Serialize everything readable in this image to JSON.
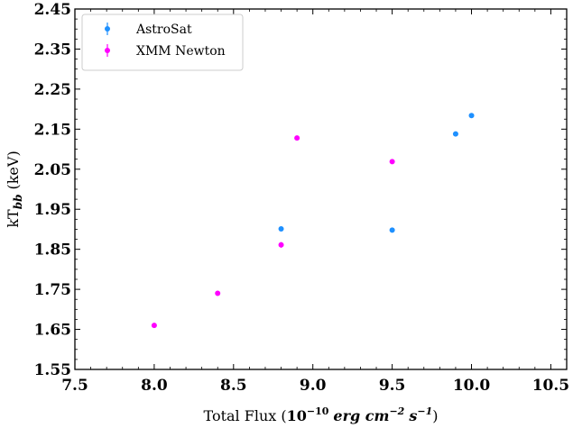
{
  "chart_data": {
    "type": "scatter",
    "title": "",
    "xlabel": {
      "prefix": "Total Flux (",
      "power_base": "10",
      "power_exp": "−10",
      "unit1": "erg cm",
      "unit1_exp": "−2",
      "unit2": "s",
      "unit2_exp": "−1",
      "suffix": ")"
    },
    "ylabel": {
      "main": "kT",
      "sub": "bb",
      "unit": "(keV)"
    },
    "xlim": [
      7.5,
      10.6
    ],
    "ylim": [
      1.55,
      2.45
    ],
    "x_ticks": [
      7.5,
      8.0,
      8.5,
      9.0,
      9.5,
      10.0,
      10.5
    ],
    "y_ticks": [
      1.55,
      1.65,
      1.75,
      1.85,
      1.95,
      2.05,
      2.15,
      2.25,
      2.35,
      2.45
    ],
    "x_minor_step": 0.1,
    "y_minor_step": 0.025,
    "legend_position": "top-left",
    "grid": false,
    "series": [
      {
        "name": "AstroSat",
        "color": "#1e90ff",
        "points": [
          {
            "x": 8.8,
            "y": 1.901,
            "yerr": 0.004
          },
          {
            "x": 9.5,
            "y": 1.898,
            "yerr": 0.003
          },
          {
            "x": 9.9,
            "y": 2.138,
            "yerr": 0.003
          },
          {
            "x": 10.0,
            "y": 2.184,
            "yerr": 0.006
          }
        ]
      },
      {
        "name": "XMM Newton",
        "color": "#ff00ff",
        "points": [
          {
            "x": 8.0,
            "y": 1.66,
            "yerr": 0.006
          },
          {
            "x": 8.4,
            "y": 1.74,
            "yerr": 0.006
          },
          {
            "x": 8.8,
            "y": 1.861,
            "yerr": 0.007
          },
          {
            "x": 8.9,
            "y": 2.128,
            "yerr": 0.003
          },
          {
            "x": 9.5,
            "y": 2.069,
            "yerr": 0.003
          }
        ]
      }
    ]
  }
}
